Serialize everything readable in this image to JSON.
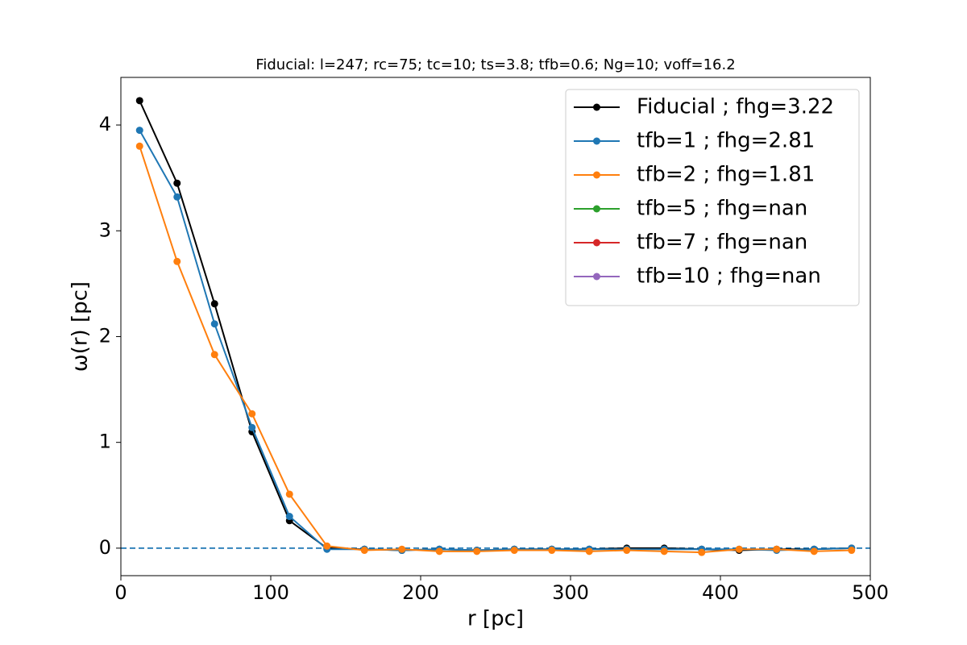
{
  "chart_data": {
    "type": "line",
    "title": "Fiducial: l=247; rc=75; tc=10; ts=3.8; tfb=0.6; Ng=10; voff=16.2",
    "xlabel": "r [pc]",
    "ylabel": "ω(r) [pc]",
    "x": [
      12.5,
      37.5,
      62.5,
      87.5,
      112.5,
      137.5,
      162.5,
      187.5,
      212.5,
      237.5,
      262.5,
      287.5,
      312.5,
      337.5,
      362.5,
      387.5,
      412.5,
      437.5,
      462.5,
      487.5
    ],
    "series": [
      {
        "name": "Fiducial ; fhg=3.22",
        "color": "#000000",
        "values": [
          4.23,
          3.45,
          2.31,
          1.1,
          0.26,
          0.0,
          -0.01,
          -0.02,
          -0.01,
          -0.02,
          -0.01,
          -0.01,
          -0.01,
          0.0,
          0.0,
          -0.01,
          -0.02,
          -0.01,
          -0.01,
          0.0
        ]
      },
      {
        "name": "tfb=1 ; fhg=2.81",
        "color": "#1f77b4",
        "values": [
          3.95,
          3.32,
          2.12,
          1.14,
          0.3,
          -0.01,
          -0.01,
          -0.02,
          -0.01,
          -0.02,
          -0.01,
          -0.01,
          -0.01,
          -0.01,
          -0.01,
          -0.01,
          -0.01,
          -0.02,
          -0.01,
          0.0
        ]
      },
      {
        "name": "tfb=2 ; fhg=1.81",
        "color": "#ff7f0e",
        "values": [
          3.8,
          2.71,
          1.83,
          1.27,
          0.51,
          0.02,
          -0.02,
          -0.01,
          -0.03,
          -0.03,
          -0.02,
          -0.02,
          -0.03,
          -0.02,
          -0.03,
          -0.04,
          -0.01,
          -0.01,
          -0.03,
          -0.02
        ]
      },
      {
        "name": "tfb=5 ; fhg=nan",
        "color": "#2ca02c",
        "values": [
          null,
          null,
          null,
          null,
          null,
          null,
          null,
          null,
          null,
          null,
          null,
          null,
          null,
          null,
          null,
          null,
          null,
          null,
          null,
          null
        ]
      },
      {
        "name": "tfb=7 ; fhg=nan",
        "color": "#d62728",
        "values": [
          null,
          null,
          null,
          null,
          null,
          null,
          null,
          null,
          null,
          null,
          null,
          null,
          null,
          null,
          null,
          null,
          null,
          null,
          null,
          null
        ]
      },
      {
        "name": "tfb=10 ; fhg=nan",
        "color": "#9467bd",
        "values": [
          null,
          null,
          null,
          null,
          null,
          null,
          null,
          null,
          null,
          null,
          null,
          null,
          null,
          null,
          null,
          null,
          null,
          null,
          null,
          null
        ]
      }
    ],
    "hline": {
      "y": 0,
      "color": "#1f77b4",
      "style": "dashed"
    },
    "xlim": [
      0,
      500
    ],
    "xticks": [
      0,
      100,
      200,
      300,
      400,
      500
    ],
    "ylim": [
      -0.26,
      4.45
    ],
    "yticks": [
      0,
      1,
      2,
      3,
      4
    ],
    "grid": false,
    "legend": "upper right"
  }
}
